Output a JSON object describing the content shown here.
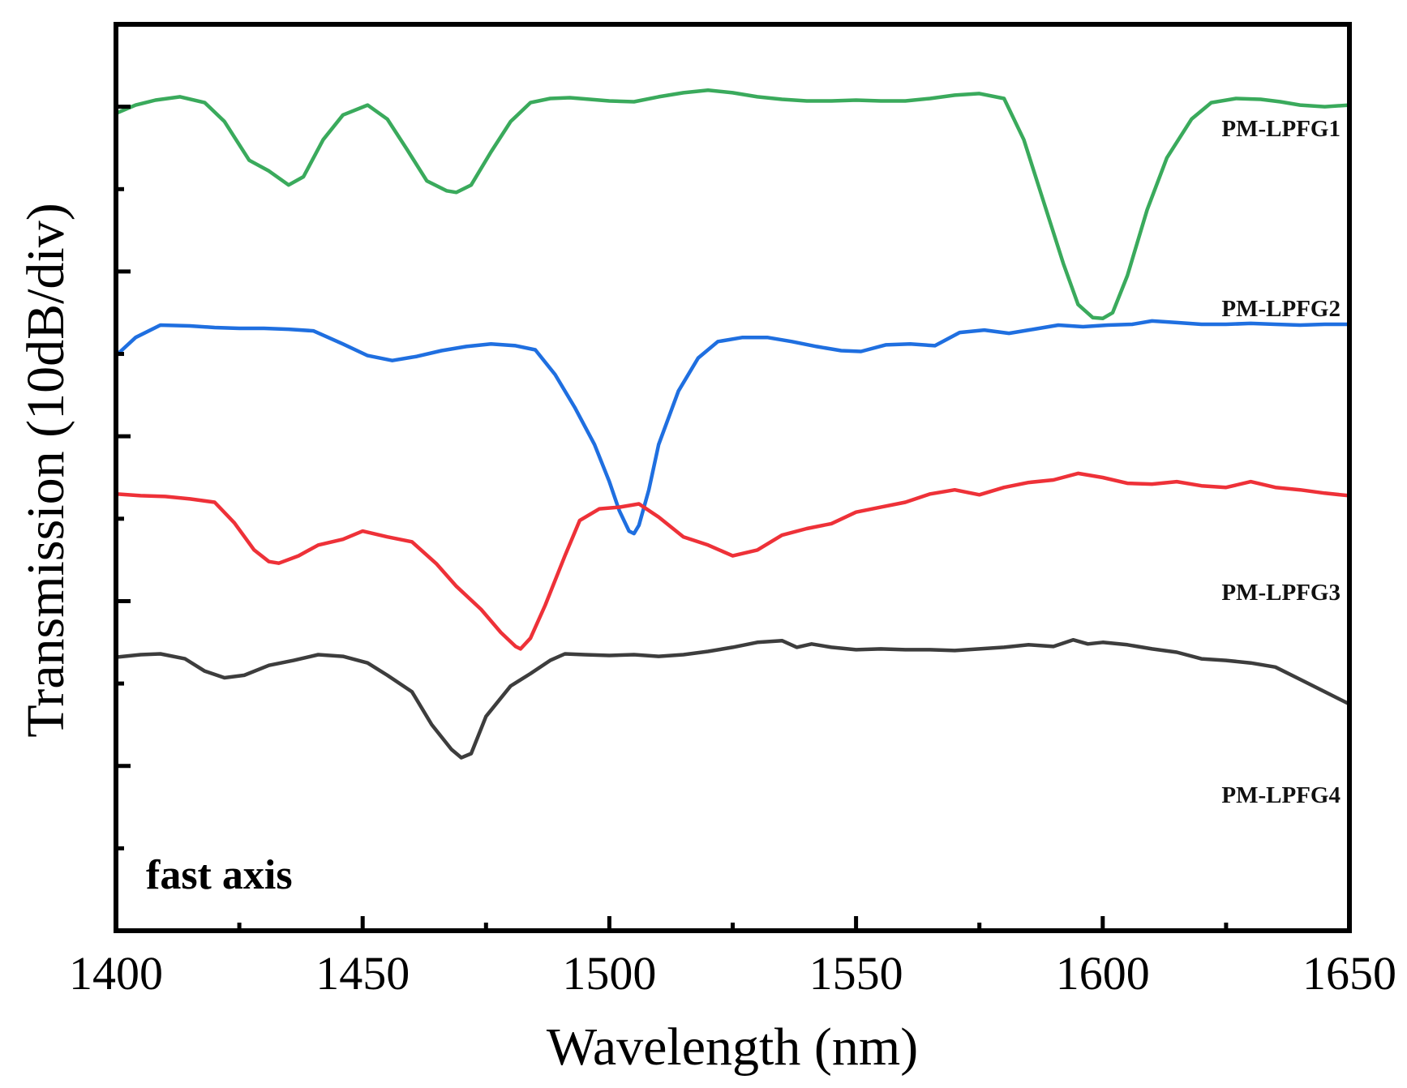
{
  "chart_data": {
    "type": "line",
    "title": "",
    "xlabel": "Wavelength (nm)",
    "ylabel": "Transmission (10dB/div)",
    "xlim": [
      1400,
      1650
    ],
    "ylim": [
      0,
      11
    ],
    "x_ticks": [
      1400,
      1450,
      1500,
      1550,
      1600,
      1650
    ],
    "x_tick_labels": [
      "1400",
      "1450",
      "1500",
      "1550",
      "1600",
      "1650"
    ],
    "y_tick_labels_shown": false,
    "annotation": "fast axis",
    "series": [
      {
        "name": "PM-LPFG1",
        "color": "#3aaa5c",
        "x": [
          1400,
          1404,
          1408,
          1413,
          1418,
          1422,
          1427,
          1431,
          1435,
          1438,
          1442,
          1446,
          1451,
          1455,
          1459,
          1463,
          1467,
          1469,
          1472,
          1476,
          1480,
          1484,
          1488,
          1492,
          1496,
          1500,
          1505,
          1510,
          1515,
          1520,
          1525,
          1530,
          1535,
          1540,
          1545,
          1550,
          1555,
          1560,
          1565,
          1570,
          1575,
          1580,
          1584,
          1588,
          1592,
          1595,
          1598,
          1600,
          1602,
          1605,
          1609,
          1613,
          1618,
          1622,
          1627,
          1632,
          1636,
          1640,
          1645,
          1650
        ],
        "values": [
          9.92,
          10.02,
          10.08,
          10.12,
          10.05,
          9.82,
          9.35,
          9.22,
          9.05,
          9.15,
          9.6,
          9.9,
          10.02,
          9.85,
          9.48,
          9.1,
          8.98,
          8.96,
          9.05,
          9.45,
          9.82,
          10.05,
          10.1,
          10.11,
          10.09,
          10.07,
          10.06,
          10.12,
          10.17,
          10.2,
          10.17,
          10.12,
          10.09,
          10.07,
          10.07,
          10.08,
          10.07,
          10.07,
          10.1,
          10.14,
          10.16,
          10.1,
          9.6,
          8.85,
          8.1,
          7.6,
          7.44,
          7.43,
          7.5,
          7.95,
          8.75,
          9.38,
          9.85,
          10.05,
          10.1,
          10.09,
          10.06,
          10.02,
          10.0,
          10.02
        ]
      },
      {
        "name": "PM-LPFG2",
        "color": "#1f6fe0",
        "x": [
          1400,
          1404,
          1409,
          1415,
          1420,
          1425,
          1430,
          1435,
          1440,
          1446,
          1451,
          1456,
          1461,
          1466,
          1471,
          1476,
          1481,
          1485,
          1489,
          1493,
          1497,
          1500,
          1502,
          1504,
          1505,
          1506,
          1508,
          1510,
          1514,
          1518,
          1522,
          1527,
          1532,
          1537,
          1542,
          1547,
          1551,
          1556,
          1561,
          1566,
          1571,
          1576,
          1581,
          1586,
          1591,
          1596,
          1601,
          1606,
          1610,
          1615,
          1620,
          1625,
          1630,
          1635,
          1640,
          1645,
          1650
        ],
        "values": [
          6.98,
          7.2,
          7.35,
          7.34,
          7.32,
          7.31,
          7.31,
          7.3,
          7.28,
          7.12,
          6.98,
          6.92,
          6.97,
          7.04,
          7.09,
          7.12,
          7.1,
          7.05,
          6.75,
          6.35,
          5.9,
          5.45,
          5.1,
          4.85,
          4.82,
          4.92,
          5.35,
          5.9,
          6.55,
          6.95,
          7.15,
          7.2,
          7.2,
          7.15,
          7.09,
          7.04,
          7.03,
          7.11,
          7.12,
          7.1,
          7.26,
          7.29,
          7.25,
          7.3,
          7.35,
          7.33,
          7.35,
          7.36,
          7.4,
          7.38,
          7.36,
          7.36,
          7.37,
          7.36,
          7.35,
          7.36,
          7.36
        ]
      },
      {
        "name": "PM-LPFG3",
        "color": "#ee3138",
        "x": [
          1400,
          1405,
          1410,
          1415,
          1420,
          1424,
          1428,
          1431,
          1433,
          1437,
          1441,
          1446,
          1450,
          1455,
          1460,
          1465,
          1469,
          1474,
          1478,
          1481,
          1482,
          1484,
          1487,
          1491,
          1494,
          1498,
          1502,
          1506,
          1510,
          1515,
          1520,
          1525,
          1530,
          1535,
          1540,
          1545,
          1550,
          1555,
          1560,
          1565,
          1570,
          1575,
          1580,
          1585,
          1590,
          1595,
          1600,
          1605,
          1610,
          1615,
          1620,
          1625,
          1630,
          1635,
          1640,
          1645,
          1650
        ],
        "values": [
          5.3,
          5.28,
          5.27,
          5.24,
          5.2,
          4.95,
          4.62,
          4.48,
          4.46,
          4.55,
          4.68,
          4.75,
          4.85,
          4.78,
          4.72,
          4.45,
          4.18,
          3.9,
          3.62,
          3.45,
          3.42,
          3.55,
          3.95,
          4.55,
          4.98,
          5.12,
          5.14,
          5.18,
          5.02,
          4.78,
          4.68,
          4.55,
          4.62,
          4.8,
          4.88,
          4.94,
          5.08,
          5.14,
          5.2,
          5.3,
          5.35,
          5.29,
          5.38,
          5.44,
          5.47,
          5.55,
          5.5,
          5.43,
          5.42,
          5.45,
          5.4,
          5.38,
          5.45,
          5.38,
          5.35,
          5.31,
          5.28
        ]
      },
      {
        "name": "PM-LPFG4",
        "color": "#3d3d3d",
        "x": [
          1400,
          1405,
          1409,
          1414,
          1418,
          1422,
          1426,
          1431,
          1436,
          1441,
          1446,
          1451,
          1455,
          1460,
          1464,
          1468,
          1470,
          1472,
          1475,
          1480,
          1484,
          1488,
          1491,
          1495,
          1500,
          1505,
          1510,
          1515,
          1520,
          1525,
          1530,
          1535,
          1538,
          1541,
          1545,
          1550,
          1555,
          1560,
          1565,
          1570,
          1575,
          1580,
          1585,
          1590,
          1594,
          1597,
          1600,
          1605,
          1610,
          1615,
          1620,
          1625,
          1630,
          1635,
          1640,
          1645,
          1650
        ],
        "values": [
          3.32,
          3.35,
          3.36,
          3.3,
          3.15,
          3.07,
          3.1,
          3.22,
          3.28,
          3.35,
          3.33,
          3.25,
          3.1,
          2.9,
          2.5,
          2.2,
          2.1,
          2.15,
          2.6,
          2.97,
          3.12,
          3.28,
          3.36,
          3.35,
          3.34,
          3.35,
          3.33,
          3.35,
          3.39,
          3.44,
          3.5,
          3.52,
          3.44,
          3.48,
          3.44,
          3.41,
          3.42,
          3.41,
          3.41,
          3.4,
          3.42,
          3.44,
          3.47,
          3.45,
          3.53,
          3.48,
          3.5,
          3.47,
          3.42,
          3.38,
          3.3,
          3.28,
          3.25,
          3.2,
          3.05,
          2.9,
          2.75
        ]
      }
    ]
  }
}
